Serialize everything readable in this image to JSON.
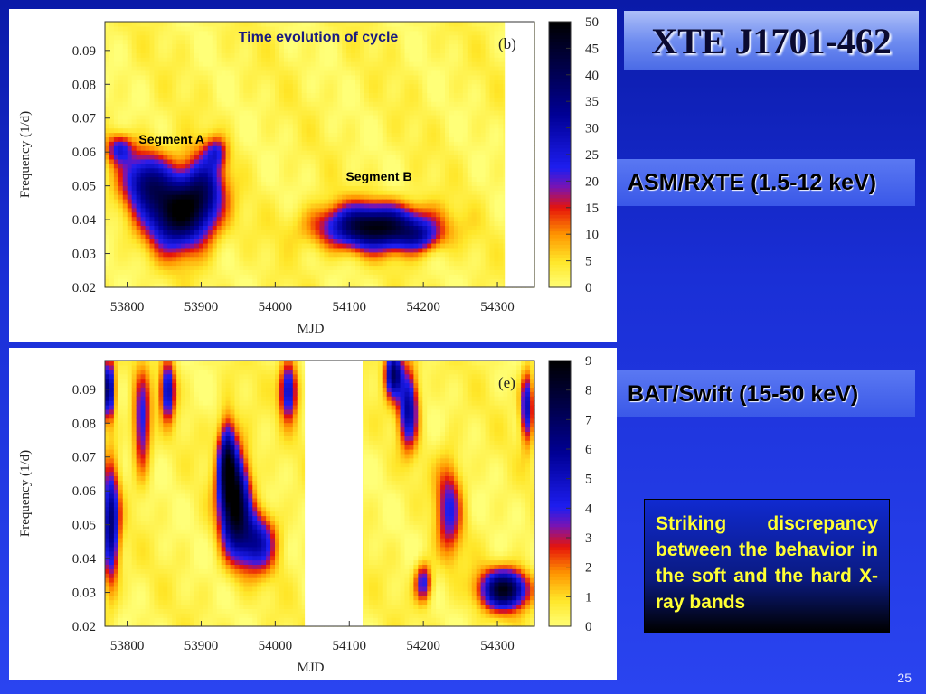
{
  "slide": {
    "title": "XTE J1701-462",
    "page_number": "25",
    "bands": [
      "ASM/RXTE (1.5-12 keV)",
      "BAT/Swift (15-50 keV)"
    ],
    "note": "Striking discrepancy between the behavior in the soft and the hard X-ray bands"
  },
  "chart_data": [
    {
      "type": "heatmap",
      "panel_label": "(b)",
      "title": "Time evolution of cycle",
      "xlabel": "MJD",
      "ylabel": "Frequency (1/d)",
      "xlim": [
        53770,
        54350
      ],
      "ylim": [
        0.02,
        0.0985
      ],
      "x_ticks": [
        53800,
        53900,
        54000,
        54100,
        54200,
        54300
      ],
      "y_ticks": [
        0.02,
        0.03,
        0.04,
        0.05,
        0.06,
        0.07,
        0.08,
        0.09
      ],
      "data_end_mjd": 54310,
      "colorbar_ticks": [
        0,
        5,
        10,
        15,
        20,
        25,
        30,
        35,
        40,
        45,
        50
      ],
      "colorbar_range": [
        0,
        50
      ],
      "annotations": [
        {
          "text": "Segment  A",
          "x": 53860,
          "y": 0.0625
        },
        {
          "text": "Segment  B",
          "x": 54140,
          "y": 0.0515
        }
      ],
      "peaks": [
        {
          "mjd": 53870,
          "freq": 0.0425,
          "power": 48,
          "sx": 30,
          "sy": 0.0075
        },
        {
          "mjd": 53825,
          "freq": 0.052,
          "power": 28,
          "sx": 22,
          "sy": 0.006
        },
        {
          "mjd": 53905,
          "freq": 0.05,
          "power": 22,
          "sx": 18,
          "sy": 0.007
        },
        {
          "mjd": 53790,
          "freq": 0.061,
          "power": 20,
          "sx": 12,
          "sy": 0.003
        },
        {
          "mjd": 53920,
          "freq": 0.06,
          "power": 16,
          "sx": 10,
          "sy": 0.003
        },
        {
          "mjd": 54135,
          "freq": 0.038,
          "power": 46,
          "sx": 50,
          "sy": 0.0045
        },
        {
          "mjd": 54195,
          "freq": 0.035,
          "power": 14,
          "sx": 20,
          "sy": 0.003
        }
      ]
    },
    {
      "type": "heatmap",
      "panel_label": "(e)",
      "xlabel": "MJD",
      "ylabel": "Frequency (1/d)",
      "xlim": [
        53770,
        54350
      ],
      "ylim": [
        0.02,
        0.0985
      ],
      "x_ticks": [
        53800,
        53900,
        54000,
        54100,
        54200,
        54300
      ],
      "y_ticks": [
        0.02,
        0.03,
        0.04,
        0.05,
        0.06,
        0.07,
        0.08,
        0.09
      ],
      "gap_mjd": [
        54040,
        54118
      ],
      "colorbar_ticks": [
        0,
        1,
        2,
        3,
        4,
        5,
        6,
        7,
        8,
        9
      ],
      "colorbar_range": [
        0,
        9
      ],
      "peaks": [
        {
          "mjd": 53945,
          "freq": 0.057,
          "power": 8.5,
          "sx": 14,
          "sy": 0.01
        },
        {
          "mjd": 53935,
          "freq": 0.07,
          "power": 5.5,
          "sx": 8,
          "sy": 0.008
        },
        {
          "mjd": 53975,
          "freq": 0.045,
          "power": 5,
          "sx": 18,
          "sy": 0.006
        },
        {
          "mjd": 53778,
          "freq": 0.05,
          "power": 6,
          "sx": 8,
          "sy": 0.012
        },
        {
          "mjd": 53775,
          "freq": 0.09,
          "power": 6.5,
          "sx": 6,
          "sy": 0.006
        },
        {
          "mjd": 53820,
          "freq": 0.08,
          "power": 4,
          "sx": 8,
          "sy": 0.01
        },
        {
          "mjd": 53855,
          "freq": 0.09,
          "power": 5,
          "sx": 7,
          "sy": 0.006
        },
        {
          "mjd": 54018,
          "freq": 0.09,
          "power": 5,
          "sx": 8,
          "sy": 0.006
        },
        {
          "mjd": 54310,
          "freq": 0.031,
          "power": 8,
          "sx": 22,
          "sy": 0.004
        },
        {
          "mjd": 54160,
          "freq": 0.095,
          "power": 6.5,
          "sx": 8,
          "sy": 0.005
        },
        {
          "mjd": 54180,
          "freq": 0.085,
          "power": 5.5,
          "sx": 9,
          "sy": 0.008
        },
        {
          "mjd": 54340,
          "freq": 0.085,
          "power": 5,
          "sx": 6,
          "sy": 0.007
        },
        {
          "mjd": 54235,
          "freq": 0.055,
          "power": 3.5,
          "sx": 12,
          "sy": 0.01
        },
        {
          "mjd": 54200,
          "freq": 0.033,
          "power": 4,
          "sx": 8,
          "sy": 0.004
        }
      ]
    }
  ]
}
